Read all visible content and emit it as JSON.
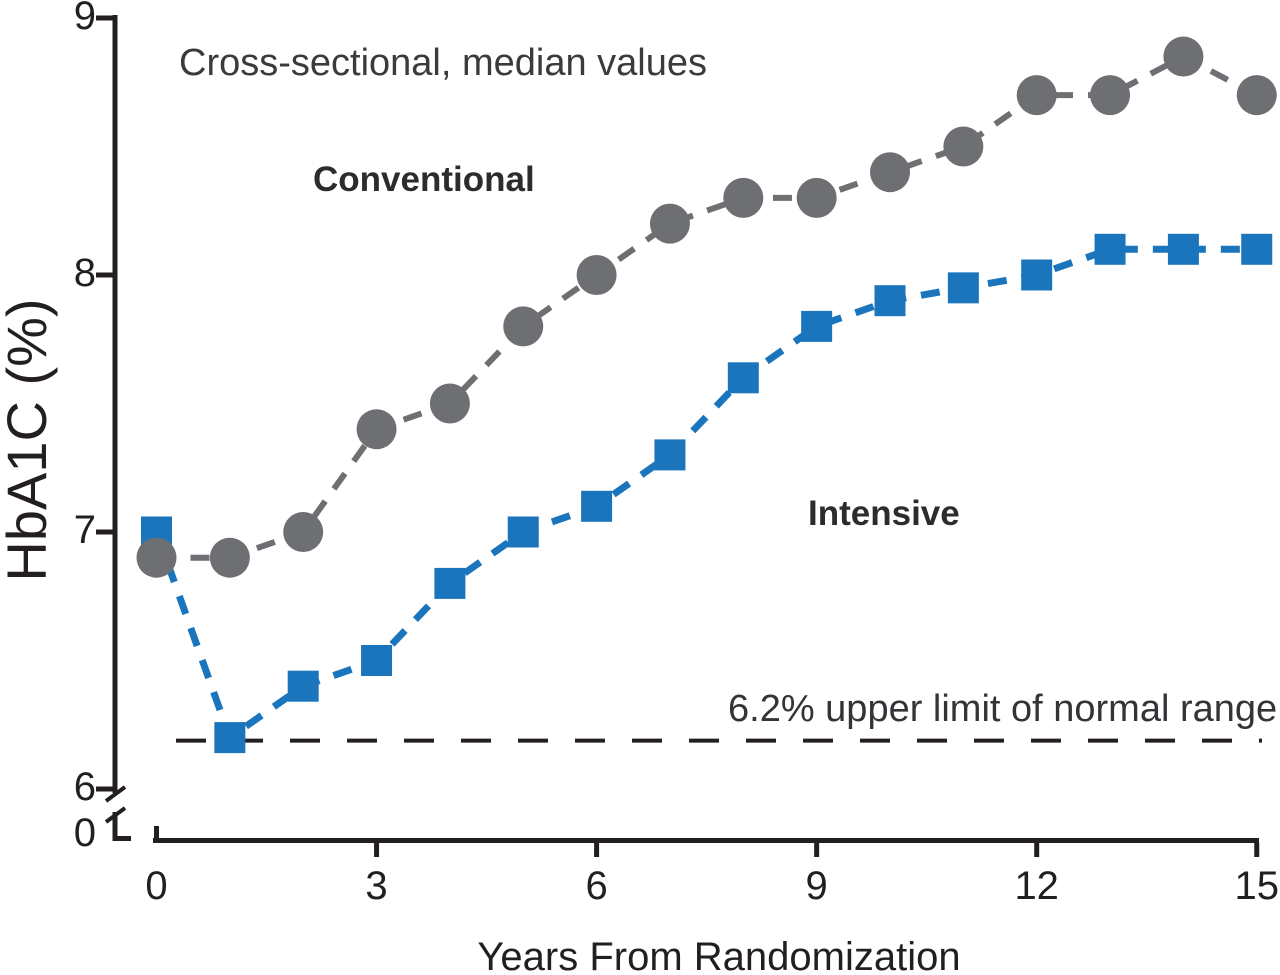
{
  "chart_data": {
    "type": "line",
    "title": "Cross-sectional, median values",
    "xlabel": "Years From Randomization",
    "ylabel": "HbA1C (%)",
    "x": [
      0,
      1,
      2,
      3,
      4,
      5,
      6,
      7,
      8,
      9,
      10,
      11,
      12,
      13,
      14,
      15
    ],
    "x_ticks": [
      0,
      3,
      6,
      9,
      12,
      15
    ],
    "y_ticks": [
      9,
      8,
      7,
      6,
      0
    ],
    "ylim_displayed": [
      6,
      9
    ],
    "axis_break_to_zero": true,
    "grid": false,
    "legend_position": "inline-annotations",
    "series": [
      {
        "name": "Conventional",
        "marker": "circle",
        "color": "#6e6f72",
        "line_style": "dashed",
        "values": [
          6.9,
          6.9,
          7.0,
          7.4,
          7.5,
          7.8,
          8.0,
          8.2,
          8.3,
          8.3,
          8.4,
          8.5,
          8.7,
          8.7,
          8.85,
          8.7
        ]
      },
      {
        "name": "Intensive",
        "marker": "square",
        "color": "#1b75bc",
        "line_style": "dashed",
        "values": [
          7.0,
          6.2,
          6.4,
          6.5,
          6.8,
          7.0,
          7.1,
          7.3,
          7.6,
          7.8,
          7.9,
          7.95,
          8.0,
          8.1,
          8.1,
          8.1
        ]
      }
    ],
    "reference_line": {
      "value": 6.2,
      "label": "6.2% upper limit of normal range",
      "style": "dashed",
      "color": "#231f20"
    }
  },
  "colors": {
    "axis": "#231f20",
    "conventional": "#6e6f72",
    "intensive": "#1b75bc",
    "annotation_text": "#3a3b3d"
  }
}
